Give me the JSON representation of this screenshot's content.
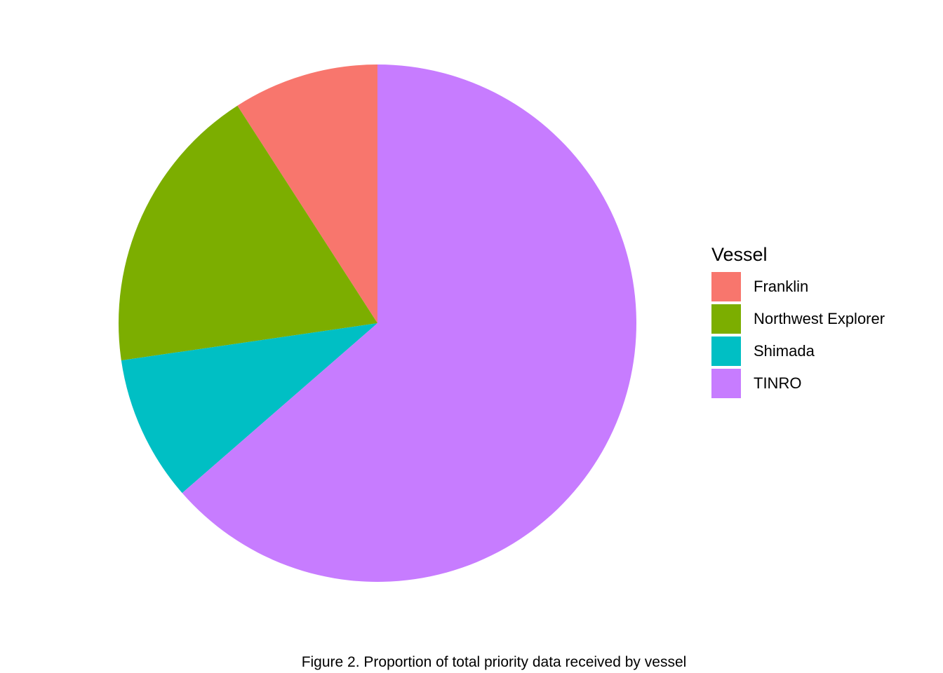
{
  "chart_data": {
    "type": "pie",
    "title": "",
    "caption": "Figure 2. Proportion of total priority data received by vessel",
    "legend": {
      "title": "Vessel",
      "position": "right"
    },
    "categories": [
      "Franklin",
      "Northwest Explorer",
      "Shimada",
      "TINRO"
    ],
    "values": [
      9.1,
      18.2,
      9.1,
      63.6
    ],
    "colors": [
      "#F8766D",
      "#7CAE00",
      "#00BFC4",
      "#C77CFF"
    ],
    "slice_order": [
      "Franklin",
      "Northwest Explorer",
      "Shimada",
      "TINRO"
    ],
    "direction": "counterclockwise-from-top"
  }
}
